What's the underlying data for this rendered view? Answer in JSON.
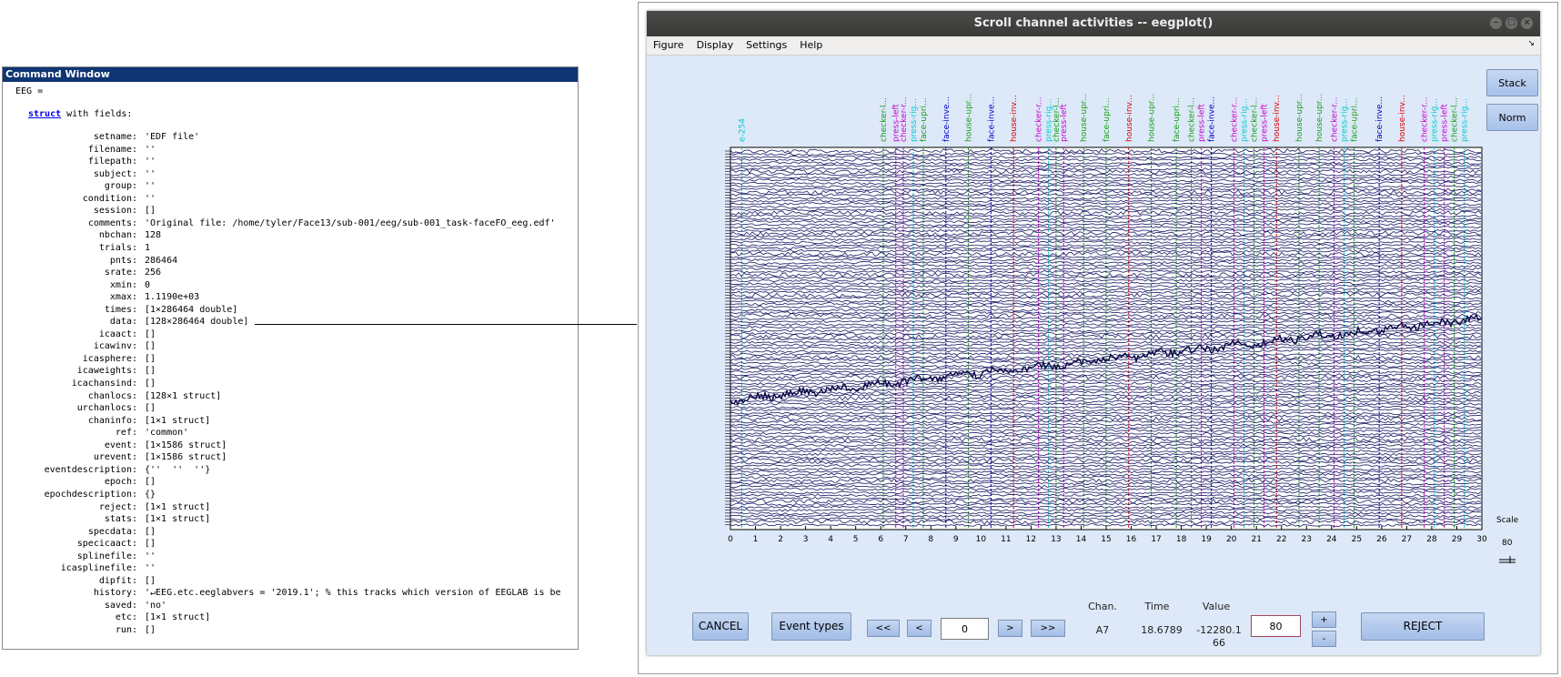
{
  "command_window": {
    "title": "Command Window",
    "prompt_line": "EEG =",
    "struct_kw": "struct",
    "struct_rest": " with fields:",
    "fields": [
      {
        "name": "setname:",
        "value": "'EDF file'"
      },
      {
        "name": "filename:",
        "value": "''"
      },
      {
        "name": "filepath:",
        "value": "''"
      },
      {
        "name": "subject:",
        "value": "''"
      },
      {
        "name": "group:",
        "value": "''"
      },
      {
        "name": "condition:",
        "value": "''"
      },
      {
        "name": "session:",
        "value": "[]"
      },
      {
        "name": "comments:",
        "value": "'Original file: /home/tyler/Face13/sub-001/eeg/sub-001_task-faceFO_eeg.edf'"
      },
      {
        "name": "nbchan:",
        "value": "128"
      },
      {
        "name": "trials:",
        "value": "1"
      },
      {
        "name": "pnts:",
        "value": "286464"
      },
      {
        "name": "srate:",
        "value": "256"
      },
      {
        "name": "xmin:",
        "value": "0"
      },
      {
        "name": "xmax:",
        "value": "1.1190e+03"
      },
      {
        "name": "times:",
        "value": "[1×286464 double]"
      },
      {
        "name": "data:",
        "value": "[128×286464 double]"
      },
      {
        "name": "icaact:",
        "value": "[]"
      },
      {
        "name": "icawinv:",
        "value": "[]"
      },
      {
        "name": "icasphere:",
        "value": "[]"
      },
      {
        "name": "icaweights:",
        "value": "[]"
      },
      {
        "name": "icachansind:",
        "value": "[]"
      },
      {
        "name": "chanlocs:",
        "value": "[128×1 struct]"
      },
      {
        "name": "urchanlocs:",
        "value": "[]"
      },
      {
        "name": "chaninfo:",
        "value": "[1×1 struct]"
      },
      {
        "name": "ref:",
        "value": "'common'"
      },
      {
        "name": "event:",
        "value": "[1×1586 struct]"
      },
      {
        "name": "urevent:",
        "value": "[1×1586 struct]"
      },
      {
        "name": "eventdescription:",
        "value": "{''  ''  ''}"
      },
      {
        "name": "epoch:",
        "value": "[]"
      },
      {
        "name": "epochdescription:",
        "value": "{}"
      },
      {
        "name": "reject:",
        "value": "[1×1 struct]"
      },
      {
        "name": "stats:",
        "value": "[1×1 struct]"
      },
      {
        "name": "specdata:",
        "value": "[]"
      },
      {
        "name": "specicaact:",
        "value": "[]"
      },
      {
        "name": "splinefile:",
        "value": "''"
      },
      {
        "name": "icasplinefile:",
        "value": "''"
      },
      {
        "name": "dipfit:",
        "value": "[]"
      },
      {
        "name": "history:",
        "value": "'↵EEG.etc.eeglabvers = '2019.1'; % this tracks which version of EEGLAB is be"
      },
      {
        "name": "saved:",
        "value": "'no'"
      },
      {
        "name": "etc:",
        "value": "[1×1 struct]"
      },
      {
        "name": "run:",
        "value": "[]"
      }
    ]
  },
  "eegplot": {
    "title": "Scroll channel activities -- eegplot()",
    "menu": [
      "Figure",
      "Display",
      "Settings",
      "Help"
    ],
    "menu_pin": "↘",
    "window_buttons": [
      "–",
      "□",
      "×"
    ],
    "side_buttons": {
      "stack": "Stack",
      "norm": "Norm"
    },
    "scale_label": "Scale",
    "scale_value": "80",
    "x_ticks": [
      "0",
      "1",
      "2",
      "3",
      "4",
      "5",
      "6",
      "7",
      "8",
      "9",
      "10",
      "11",
      "12",
      "13",
      "14",
      "15",
      "16",
      "17",
      "18",
      "19",
      "20",
      "21",
      "22",
      "23",
      "24",
      "25",
      "26",
      "27",
      "28",
      "29",
      "30"
    ],
    "x_range": [
      0,
      30
    ],
    "channel_count": 128,
    "first_event_label": "e-254",
    "events": [
      {
        "t": 6.1,
        "label": "checker-l...",
        "color": "#14a014"
      },
      {
        "t": 6.6,
        "label": "press-left",
        "color": "#c800c8"
      },
      {
        "t": 6.9,
        "label": "checker-r...",
        "color": "#c800c8"
      },
      {
        "t": 7.3,
        "label": "press-rig...",
        "color": "#00cccc"
      },
      {
        "t": 7.7,
        "label": "face-upri...",
        "color": "#14a014"
      },
      {
        "t": 8.6,
        "label": "face-inve...",
        "color": "#0000cc"
      },
      {
        "t": 9.5,
        "label": "house-upr...",
        "color": "#14a014"
      },
      {
        "t": 10.4,
        "label": "face-inve...",
        "color": "#0000cc"
      },
      {
        "t": 11.3,
        "label": "house-inv...",
        "color": "#dd0000"
      },
      {
        "t": 12.3,
        "label": "checker-r...",
        "color": "#c800c8"
      },
      {
        "t": 12.7,
        "label": "press-rig...",
        "color": "#00cccc"
      },
      {
        "t": 13.0,
        "label": "checker-l...",
        "color": "#14a014"
      },
      {
        "t": 13.3,
        "label": "press-left",
        "color": "#c800c8"
      },
      {
        "t": 14.1,
        "label": "house-upr...",
        "color": "#14a014"
      },
      {
        "t": 15.0,
        "label": "face-upri...",
        "color": "#14a014"
      },
      {
        "t": 15.9,
        "label": "house-inv...",
        "color": "#dd0000"
      },
      {
        "t": 16.8,
        "label": "house-upr...",
        "color": "#14a014"
      },
      {
        "t": 17.8,
        "label": "face-upri...",
        "color": "#14a014"
      },
      {
        "t": 18.4,
        "label": "checker-l...",
        "color": "#14a014"
      },
      {
        "t": 18.8,
        "label": "press-left",
        "color": "#c800c8"
      },
      {
        "t": 19.2,
        "label": "face-inve...",
        "color": "#0000cc"
      },
      {
        "t": 20.1,
        "label": "checker-r...",
        "color": "#c800c8"
      },
      {
        "t": 20.5,
        "label": "press-rig...",
        "color": "#00cccc"
      },
      {
        "t": 20.9,
        "label": "checker-l...",
        "color": "#14a014"
      },
      {
        "t": 21.3,
        "label": "press-left",
        "color": "#c800c8"
      },
      {
        "t": 21.8,
        "label": "house-inv...",
        "color": "#dd0000"
      },
      {
        "t": 22.7,
        "label": "house-upr...",
        "color": "#14a014"
      },
      {
        "t": 23.5,
        "label": "house-upr...",
        "color": "#14a014"
      },
      {
        "t": 24.1,
        "label": "checker-r...",
        "color": "#c800c8"
      },
      {
        "t": 24.5,
        "label": "press-rig...",
        "color": "#00cccc"
      },
      {
        "t": 24.9,
        "label": "face-upri...",
        "color": "#14a014"
      },
      {
        "t": 25.9,
        "label": "face-inve...",
        "color": "#0000cc"
      },
      {
        "t": 26.8,
        "label": "house-inv...",
        "color": "#dd0000"
      },
      {
        "t": 27.7,
        "label": "checker-r...",
        "color": "#c800c8"
      },
      {
        "t": 28.1,
        "label": "press-rig...",
        "color": "#00cccc"
      },
      {
        "t": 28.5,
        "label": "press-left",
        "color": "#c800c8"
      },
      {
        "t": 28.9,
        "label": "checker-l...",
        "color": "#14a014"
      },
      {
        "t": 29.3,
        "label": "press-rig...",
        "color": "#00cccc"
      }
    ],
    "bottom": {
      "cancel": "CANCEL",
      "event_types": "Event types",
      "nav_first": "<<",
      "nav_prev": "<",
      "time_input": "0",
      "nav_next": ">",
      "nav_last": ">>",
      "chan_header": "Chan.",
      "time_header": "Time",
      "value_header": "Value",
      "chan_value": "A7",
      "time_value": "18.6789",
      "value_line1": "-12280.1",
      "value_line2": "66",
      "scale_input": "80",
      "scale_plus": "+",
      "scale_minus": "-",
      "reject": "REJECT"
    },
    "colors": {
      "trace": "#0a0a5a",
      "bg": "#dde8f8",
      "button": "#b4cbee"
    }
  }
}
